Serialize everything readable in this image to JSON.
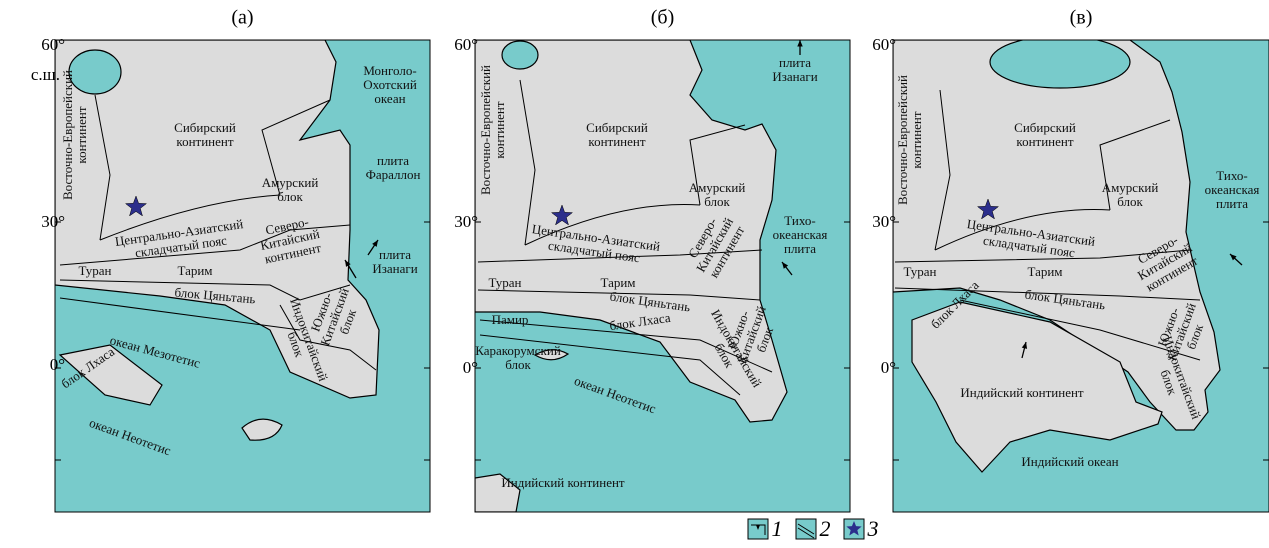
{
  "panels": [
    {
      "title": "(а)",
      "lat_labels": [
        "60°",
        "с.ш.",
        "30°",
        "0°"
      ],
      "labels": [
        "Восточно-Европейский\nконтинент",
        "Сибирский\nконтинент",
        "Монголо-\nОхотский\nокеан",
        "плита\nФараллон",
        "Амурский\nблок",
        "Центрально-Азиатский\nскладчатый пояс",
        "Северо-\nКитайский\nконтинент",
        "плита\nИзанаги",
        "Туран",
        "Тарим",
        "блок Цяньтань",
        "Южно-\nКитайский\nблок",
        "Индокитайский\nблок",
        "океан Мезотетис",
        "блок Лхаса",
        "океан Неотетис"
      ]
    },
    {
      "title": "(б)",
      "lat_labels": [
        "60°",
        "30°",
        "0°"
      ],
      "labels": [
        "Восточно-Европейский\nконтинент",
        "плита\nИзанаги",
        "Сибирский\nконтинент",
        "Амурский\nблок",
        "Тихо-\nокеанская\nплита",
        "Центрально-Азиатский\nскладчатый пояс",
        "Северо-\nКитайский\nконтинент",
        "Туран",
        "Тарим",
        "Памир",
        "блок Цяньтань",
        "блок Лхаса",
        "Каракорумский\nблок",
        "Южно-\nКитайский\nблок",
        "Индокитайский\nблок",
        "океан Неотетис",
        "Индийский континент"
      ]
    },
    {
      "title": "(в)",
      "lat_labels": [
        "60°",
        "30°",
        "0°"
      ],
      "labels": [
        "Восточно-Европейский\nконтинент",
        "Сибирский\nконтинент",
        "Тихо-\nокеанская\nплита",
        "Амурский\nблок",
        "Центрально-Азиатский\nскладчатый пояс",
        "Северо-\nКитайский\nконтинент",
        "Туран",
        "Тарим",
        "блок Лхаса",
        "блок Цяньтань",
        "Южно-\nКитайский\nблок",
        "Индокитайский\nблок",
        "Индийский континент",
        "Индийский океан"
      ]
    }
  ],
  "legend": [
    "1",
    "2",
    "3"
  ]
}
